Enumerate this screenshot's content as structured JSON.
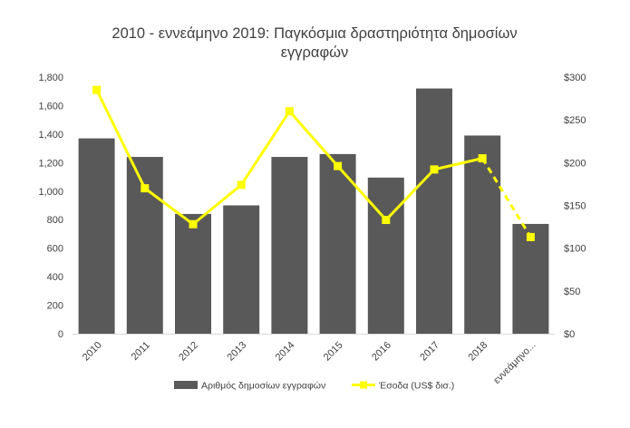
{
  "chart_data": {
    "type": "bar",
    "title": "2010 - εννεάμηνο 2019: Παγκόσμια δραστηριότητα δημοσίων εγγραφών",
    "title_lines": [
      "2010 - εννεάμηνο 2019: Παγκόσμια δραστηριότητα δημοσίων",
      "εγγραφών"
    ],
    "categories": [
      "2010",
      "2011",
      "2012",
      "2013",
      "2014",
      "2015",
      "2016",
      "2017",
      "2018",
      "εννεάμηνο..."
    ],
    "series": [
      {
        "name": "Αριθμός δημοσίων εγγραφών",
        "type": "bar",
        "axis": "left",
        "color": "#595959",
        "values": [
          1370,
          1240,
          840,
          900,
          1240,
          1260,
          1095,
          1720,
          1390,
          770
        ]
      },
      {
        "name": "Έσοδα (US$ δισ.)",
        "type": "line",
        "axis": "right",
        "color": "#FFFF00",
        "dashed_last_segment": true,
        "values": [
          285,
          170,
          128,
          174,
          260,
          196,
          133,
          192,
          205,
          113
        ]
      }
    ],
    "y_left": {
      "ylim": [
        0,
        1800
      ],
      "ticks": [
        0,
        200,
        400,
        600,
        800,
        1000,
        1200,
        1400,
        1600,
        1800
      ],
      "tick_labels": [
        "0",
        "200",
        "400",
        "600",
        "800",
        "1,000",
        "1,200",
        "1,400",
        "1,600",
        "1,800"
      ]
    },
    "y_right": {
      "ylim": [
        0,
        300
      ],
      "ticks": [
        0,
        50,
        100,
        150,
        200,
        250,
        300
      ],
      "tick_labels": [
        "$0",
        "$50",
        "$100",
        "$150",
        "$200",
        "$250",
        "$300"
      ]
    },
    "grid": false,
    "legend_position": "bottom"
  }
}
